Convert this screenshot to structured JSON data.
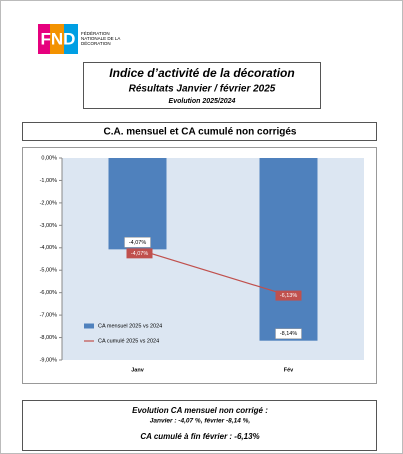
{
  "header": {
    "logo": "FND",
    "logo_caption": [
      "FÉDÉRATION",
      "NATIONALE DE LA",
      "DÉCORATION"
    ],
    "title": "Indice d’activité de la décoration",
    "subtitle": "Résultats Janvier / février 2025",
    "note": "Evolution 2025/2024"
  },
  "chart_data": {
    "type": "bar",
    "title": "C.A. mensuel et CA cumulé non corrigés",
    "categories": [
      "Janv",
      "Fév"
    ],
    "series": [
      {
        "name": "CA mensuel 2025 vs 2024",
        "type": "bar",
        "color": "#4f81bd",
        "values": [
          -4.07,
          -8.14
        ],
        "value_labels": [
          "-4,07%",
          "-8,14%"
        ]
      },
      {
        "name": "CA cumulé 2025 vs 2024",
        "type": "line",
        "color": "#c0504d",
        "values": [
          -4.07,
          -6.13
        ],
        "value_labels": [
          "-4,07%",
          "-6,13%"
        ]
      }
    ],
    "ylim": [
      0,
      -9
    ],
    "yticks": [
      {
        "value": 0,
        "label": "0,00%"
      },
      {
        "value": -1,
        "label": "-1,00%"
      },
      {
        "value": -2,
        "label": "-2,00%"
      },
      {
        "value": -3,
        "label": "-3,00%"
      },
      {
        "value": -4,
        "label": "-4,00%"
      },
      {
        "value": -5,
        "label": "-5,00%"
      },
      {
        "value": -6,
        "label": "-6,00%"
      },
      {
        "value": -7,
        "label": "-7,00%"
      },
      {
        "value": -8,
        "label": "-8,00%"
      },
      {
        "value": -9,
        "label": "-9,00%"
      }
    ],
    "grid": false,
    "legend": "bottom-left"
  },
  "footer": {
    "line1": "Evolution CA mensuel non corrigé :",
    "line2": "Janvier : -4,07 %, février -8,14 %,",
    "line3": "CA cumulé à fin février : -6,13%"
  }
}
